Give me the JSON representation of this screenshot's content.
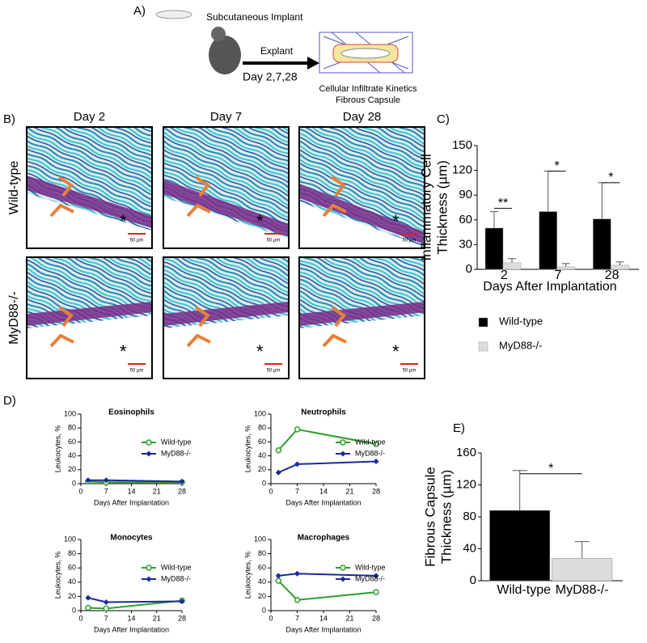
{
  "figure": {
    "panel_a": {
      "label": "A)",
      "implant": "Subcutaneous Implant",
      "explant": "Explant",
      "days": "Day 2,7,28",
      "outcome": [
        "Cellular Infiltrate Kinetics",
        "Fibrous Capsule"
      ]
    },
    "panel_b": {
      "label": "B)",
      "columns": [
        "Day 2",
        "Day 7",
        "Day 28"
      ],
      "rows": [
        "Wild-type",
        "MyD88-/-"
      ],
      "scale_bar": "50 µm",
      "asterisk": "*"
    }
  },
  "chart_data": [
    {
      "type": "bar",
      "label": "C)",
      "categories": [
        "2",
        "7",
        "28"
      ],
      "series": [
        {
          "name": "Wild-type",
          "color": "#000000",
          "values": [
            50,
            70,
            61
          ],
          "errors": [
            20,
            49,
            44
          ]
        },
        {
          "name": "MyD88-/-",
          "color": "#dddddd",
          "values": [
            8,
            3,
            5
          ],
          "errors": [
            5,
            4,
            4
          ]
        }
      ],
      "ylim": [
        0,
        150
      ],
      "yticks": [
        0,
        30,
        60,
        90,
        120,
        150
      ],
      "xlabel": "Days After Implantation",
      "ylabel": [
        "Inflammatory Cell",
        "Thickness (µm)"
      ],
      "annotations": [
        "**",
        "*",
        "*"
      ]
    },
    {
      "type": "line",
      "label": "D)",
      "title": "Eosinophils",
      "x": [
        2,
        7,
        28
      ],
      "series": [
        {
          "name": "Wild-type",
          "color": "#2ca02c",
          "values": [
            3,
            2,
            2
          ]
        },
        {
          "name": "MyD88-/-",
          "color": "#1a2a9a",
          "values": [
            5,
            5,
            3
          ]
        }
      ],
      "xlim": [
        0,
        28
      ],
      "xticks": [
        0,
        7,
        14,
        21,
        28
      ],
      "ylim": [
        0,
        100
      ],
      "yticks": [
        0,
        20,
        40,
        60,
        80,
        100
      ],
      "xlabel": "Days After Implantation",
      "ylabel": "Leukocytes, %"
    },
    {
      "type": "line",
      "title": "Neutrophils",
      "x": [
        2,
        7,
        28
      ],
      "series": [
        {
          "name": "Wild-type",
          "color": "#2ca02c",
          "values": [
            48,
            78,
            57
          ]
        },
        {
          "name": "MyD88-/-",
          "color": "#1a2a9a",
          "values": [
            16,
            28,
            32
          ]
        }
      ],
      "xlim": [
        0,
        28
      ],
      "xticks": [
        0,
        7,
        14,
        21,
        28
      ],
      "ylim": [
        0,
        100
      ],
      "yticks": [
        0,
        20,
        40,
        60,
        80,
        100
      ],
      "xlabel": "Days After Implantation",
      "ylabel": "Leukocytes, %"
    },
    {
      "type": "line",
      "title": "Monocytes",
      "x": [
        2,
        7,
        28
      ],
      "series": [
        {
          "name": "Wild-type",
          "color": "#2ca02c",
          "values": [
            4,
            3,
            14
          ]
        },
        {
          "name": "MyD88-/-",
          "color": "#1a2a9a",
          "values": [
            18,
            12,
            13
          ]
        }
      ],
      "xlim": [
        0,
        28
      ],
      "xticks": [
        0,
        7,
        14,
        21,
        28
      ],
      "ylim": [
        0,
        100
      ],
      "yticks": [
        0,
        20,
        40,
        60,
        80,
        100
      ],
      "xlabel": "Days After Implantation",
      "ylabel": "Leukocytes, %"
    },
    {
      "type": "line",
      "title": "Macrophages",
      "x": [
        2,
        7,
        28
      ],
      "series": [
        {
          "name": "Wild-type",
          "color": "#2ca02c",
          "values": [
            42,
            15,
            26
          ]
        },
        {
          "name": "MyD88-/-",
          "color": "#1a2a9a",
          "values": [
            49,
            52,
            49
          ]
        }
      ],
      "xlim": [
        0,
        28
      ],
      "xticks": [
        0,
        7,
        14,
        21,
        28
      ],
      "ylim": [
        0,
        100
      ],
      "yticks": [
        0,
        20,
        40,
        60,
        80,
        100
      ],
      "xlabel": "Days After Implantation",
      "ylabel": "Leukocytes, %"
    },
    {
      "type": "bar",
      "label": "E)",
      "categories": [
        "Wild-type",
        "MyD88-/-"
      ],
      "values": [
        88,
        28
      ],
      "errors": [
        50,
        21
      ],
      "colors": [
        "#000000",
        "#dddddd"
      ],
      "ylim": [
        0,
        160
      ],
      "yticks": [
        0,
        40,
        80,
        120,
        160
      ],
      "ylabel": [
        "Fibrous Capsule",
        "Thickness (µm)"
      ],
      "annotations": [
        "*"
      ]
    }
  ]
}
